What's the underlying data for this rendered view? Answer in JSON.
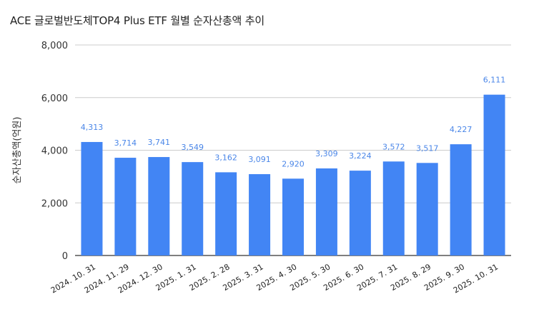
{
  "chart_data": {
    "type": "bar",
    "title": "ACE 글로벌반도체TOP4 Plus ETF  월별 순자산총액 추이",
    "xlabel": "",
    "ylabel": "순자산총액(억원)",
    "categories": [
      "2024. 10. 31",
      "2024. 11. 29",
      "2024. 12. 30",
      "2025. 1. 31",
      "2025. 2. 28",
      "2025. 3. 31",
      "2025. 4. 30",
      "2025. 5. 30",
      "2025. 6. 30",
      "2025. 7. 31",
      "2025. 8. 29",
      "2025. 9. 30",
      "2025. 10. 31"
    ],
    "values": [
      4313,
      3714,
      3741,
      3549,
      3162,
      3091,
      2920,
      3309,
      3224,
      3572,
      3517,
      4227,
      6111
    ],
    "data_labels": [
      "4,313",
      "3,714",
      "3,741",
      "3,549",
      "3,162",
      "3,091",
      "2,920",
      "3,309",
      "3,224",
      "3,572",
      "3,517",
      "4,227",
      "6,111"
    ],
    "ylim": [
      0,
      8000
    ],
    "yticks": [
      0,
      2000,
      4000,
      6000,
      8000
    ],
    "ytick_labels": [
      "0",
      "2,000",
      "4,000",
      "6,000",
      "8,000"
    ],
    "grid": true,
    "legend": "none",
    "colors": {
      "bar": "#4285f4",
      "data_label": "#4a86e8",
      "grid": "#cccccc",
      "axis": "#333333"
    }
  }
}
